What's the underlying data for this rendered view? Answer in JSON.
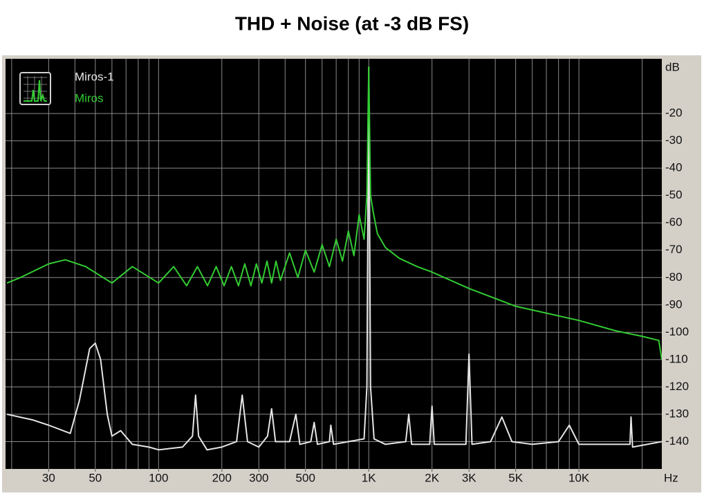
{
  "chart_data": {
    "type": "line",
    "title": "THD + Noise (at -3 dB FS)",
    "x_unit": "Hz",
    "y_unit": "dB",
    "xscale": "log",
    "xlim": [
      18.7,
      24800
    ],
    "ylim": [
      -150,
      0
    ],
    "xticks": [
      30,
      50,
      100,
      200,
      300,
      500,
      {
        "value": 1000,
        "label": "1K"
      },
      {
        "value": 2000,
        "label": "2K"
      },
      {
        "value": 3000,
        "label": "3K"
      },
      {
        "value": 5000,
        "label": "5K"
      },
      {
        "value": 10000,
        "label": "10K"
      }
    ],
    "xgrid": [
      20,
      30,
      40,
      50,
      60,
      70,
      80,
      90,
      100,
      200,
      300,
      400,
      500,
      600,
      700,
      800,
      900,
      1000,
      2000,
      3000,
      4000,
      5000,
      6000,
      7000,
      8000,
      9000,
      10000,
      20000
    ],
    "yticks": [
      -20,
      -30,
      -40,
      -50,
      -60,
      -70,
      -80,
      -90,
      -100,
      -110,
      -120,
      -130,
      -140
    ],
    "grid": true,
    "series": [
      {
        "name": "Miros-1",
        "color": "#e6e6e6",
        "x": [
          19,
          25,
          30,
          38,
          42,
          47,
          50,
          53,
          57,
          60,
          66,
          75,
          90,
          100,
          130,
          145,
          150,
          155,
          170,
          200,
          235,
          250,
          265,
          300,
          330,
          345,
          360,
          420,
          450,
          470,
          530,
          550,
          570,
          650,
          660,
          680,
          800,
          950,
          980,
          1000,
          1020,
          1060,
          1200,
          1500,
          1550,
          1600,
          1950,
          2000,
          2050,
          2900,
          3000,
          3100,
          3800,
          4300,
          4800,
          6000,
          8000,
          9000,
          10000,
          15000,
          17500,
          17700,
          18000,
          24800
        ],
        "values": [
          -130,
          -132,
          -134,
          -137,
          -125,
          -106,
          -104,
          -110,
          -130,
          -138,
          -136,
          -141,
          -142,
          -143,
          -142,
          -138,
          -123,
          -138,
          -143,
          -142,
          -140,
          -123,
          -140,
          -142,
          -138,
          -128,
          -140,
          -140,
          -130,
          -141,
          -140,
          -133,
          -141,
          -140,
          -134,
          -141,
          -140,
          -139,
          -120,
          -3,
          -120,
          -139,
          -141,
          -140,
          -130,
          -141,
          -141,
          -127,
          -141,
          -141,
          -108,
          -141,
          -140,
          -131,
          -140,
          -141,
          -140,
          -134,
          -141,
          -141,
          -141,
          -131,
          -142,
          -140
        ]
      },
      {
        "name": "Miros",
        "color": "#33cc33",
        "x": [
          19,
          22,
          30,
          36,
          45,
          60,
          75,
          100,
          118,
          136,
          153,
          171,
          188,
          205,
          222,
          240,
          257,
          275,
          292,
          310,
          328,
          345,
          362,
          380,
          420,
          460,
          500,
          550,
          600,
          650,
          700,
          750,
          800,
          850,
          900,
          950,
          980,
          1000,
          1020,
          1050,
          1100,
          1200,
          1400,
          1700,
          2000,
          3000,
          5000,
          10000,
          15000,
          20000,
          24000,
          24800
        ],
        "values": [
          -82,
          -80,
          -75,
          -73.5,
          -76,
          -82,
          -76,
          -82,
          -76,
          -83,
          -76,
          -83,
          -76,
          -83,
          -76,
          -83,
          -75,
          -83,
          -75,
          -82,
          -74,
          -82,
          -74,
          -81,
          -71,
          -80,
          -70,
          -78,
          -68,
          -76,
          -66,
          -74,
          -63,
          -72,
          -57,
          -66,
          -50,
          -3,
          -50,
          -56,
          -64,
          -69,
          -73,
          -76,
          -78,
          -84,
          -90.5,
          -95.7,
          -99.5,
          -101.5,
          -103,
          -110
        ]
      }
    ]
  }
}
